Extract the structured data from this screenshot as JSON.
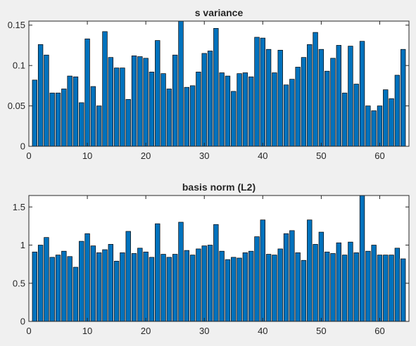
{
  "chart_data": [
    {
      "type": "bar",
      "title": "s variance",
      "xlabel": "",
      "ylabel": "",
      "xlim": [
        0,
        65
      ],
      "ylim": [
        0,
        0.155
      ],
      "xticks": [
        0,
        10,
        20,
        30,
        40,
        50,
        60
      ],
      "yticks": [
        0,
        0.05,
        0.1,
        0.15
      ],
      "ytick_labels": [
        "0",
        "0.05",
        "0.1",
        "0.15"
      ],
      "bar_color": "#0072bd",
      "x": [
        1,
        2,
        3,
        4,
        5,
        6,
        7,
        8,
        9,
        10,
        11,
        12,
        13,
        14,
        15,
        16,
        17,
        18,
        19,
        20,
        21,
        22,
        23,
        24,
        25,
        26,
        27,
        28,
        29,
        30,
        31,
        32,
        33,
        34,
        35,
        36,
        37,
        38,
        39,
        40,
        41,
        42,
        43,
        44,
        45,
        46,
        47,
        48,
        49,
        50,
        51,
        52,
        53,
        54,
        55,
        56,
        57,
        58,
        59,
        60,
        61,
        62,
        63,
        64
      ],
      "values": [
        0.082,
        0.126,
        0.113,
        0.066,
        0.066,
        0.071,
        0.087,
        0.086,
        0.054,
        0.133,
        0.074,
        0.05,
        0.142,
        0.11,
        0.097,
        0.097,
        0.058,
        0.112,
        0.111,
        0.109,
        0.092,
        0.131,
        0.09,
        0.071,
        0.113,
        0.155,
        0.073,
        0.075,
        0.092,
        0.115,
        0.118,
        0.146,
        0.091,
        0.087,
        0.068,
        0.09,
        0.091,
        0.086,
        0.135,
        0.134,
        0.12,
        0.091,
        0.119,
        0.076,
        0.083,
        0.098,
        0.11,
        0.126,
        0.141,
        0.12,
        0.093,
        0.109,
        0.125,
        0.066,
        0.124,
        0.077,
        0.13,
        0.05,
        0.044,
        0.05,
        0.07,
        0.059,
        0.088,
        0.12
      ]
    },
    {
      "type": "bar",
      "title": "basis norm (L2)",
      "xlabel": "",
      "ylabel": "",
      "xlim": [
        0,
        65
      ],
      "ylim": [
        0,
        1.65
      ],
      "xticks": [
        0,
        10,
        20,
        30,
        40,
        50,
        60
      ],
      "yticks": [
        0,
        0.5,
        1,
        1.5
      ],
      "ytick_labels": [
        "0",
        "0.5",
        "1",
        "1.5"
      ],
      "bar_color": "#0072bd",
      "x": [
        1,
        2,
        3,
        4,
        5,
        6,
        7,
        8,
        9,
        10,
        11,
        12,
        13,
        14,
        15,
        16,
        17,
        18,
        19,
        20,
        21,
        22,
        23,
        24,
        25,
        26,
        27,
        28,
        29,
        30,
        31,
        32,
        33,
        34,
        35,
        36,
        37,
        38,
        39,
        40,
        41,
        42,
        43,
        44,
        45,
        46,
        47,
        48,
        49,
        50,
        51,
        52,
        53,
        54,
        55,
        56,
        57,
        58,
        59,
        60,
        61,
        62,
        63,
        64
      ],
      "values": [
        0.91,
        1.0,
        1.1,
        0.84,
        0.87,
        0.92,
        0.85,
        0.71,
        1.05,
        1.15,
        0.99,
        0.9,
        0.94,
        1.01,
        0.79,
        0.9,
        1.18,
        0.89,
        0.96,
        0.91,
        0.84,
        1.28,
        0.88,
        0.84,
        0.88,
        1.3,
        0.93,
        0.87,
        0.95,
        0.99,
        1.0,
        1.27,
        0.92,
        0.81,
        0.84,
        0.83,
        0.9,
        0.92,
        1.11,
        1.33,
        0.88,
        0.87,
        0.95,
        1.15,
        1.19,
        0.9,
        0.8,
        1.33,
        1.01,
        1.17,
        0.91,
        0.89,
        1.03,
        0.87,
        1.04,
        0.9,
        1.65,
        0.92,
        1.0,
        0.87,
        0.87,
        0.87,
        0.96,
        0.82
      ]
    }
  ]
}
